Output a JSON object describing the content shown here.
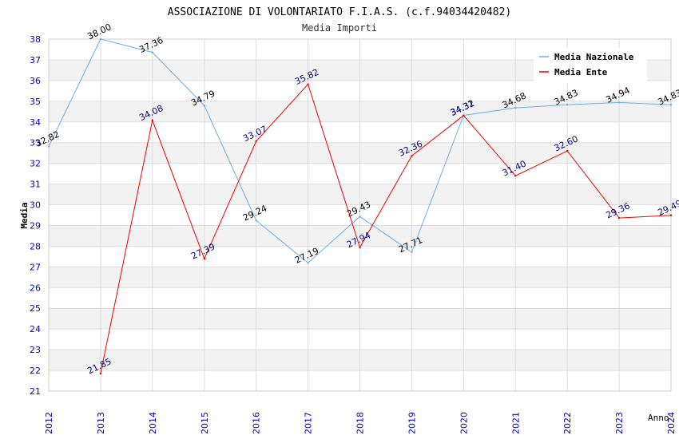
{
  "chart_data": {
    "type": "line",
    "title": "ASSOCIAZIONE DI VOLONTARIATO F.I.A.S. (c.f.94034420482)",
    "subtitle": "Media Importi",
    "xlabel": "Anno",
    "ylabel": "Media",
    "x": [
      "2012",
      "2013",
      "2014",
      "2015",
      "2016",
      "2017",
      "2018",
      "2019",
      "2020",
      "2021",
      "2022",
      "2023",
      "2024"
    ],
    "ylim": [
      21,
      38
    ],
    "yticks": [
      "21",
      "22",
      "23",
      "24",
      "25",
      "26",
      "27",
      "28",
      "29",
      "30",
      "31",
      "32",
      "33",
      "34",
      "35",
      "36",
      "37",
      "38"
    ],
    "legend_position": "top-right",
    "series": [
      {
        "name": "Media Nazionale",
        "color": "#6aaee6",
        "label_color": "#000000",
        "values": [
          32.82,
          38.0,
          37.36,
          34.79,
          29.24,
          27.19,
          29.43,
          27.71,
          34.32,
          34.68,
          34.83,
          34.94,
          34.83
        ],
        "labels": [
          "32.82",
          "38.00",
          "37.36",
          "34.79",
          "29.24",
          "27.19",
          "29.43",
          "27.71",
          "34.32",
          "34.68",
          "34.83",
          "34.94",
          "34.83"
        ]
      },
      {
        "name": "Media Ente",
        "color": "#ee0000",
        "label_color": "#000080",
        "values": [
          null,
          21.85,
          34.08,
          27.39,
          33.07,
          35.82,
          27.94,
          32.36,
          34.31,
          31.4,
          32.6,
          29.36,
          29.49
        ],
        "labels": [
          null,
          "21.85",
          "34.08",
          "27.39",
          "33.07",
          "35.82",
          "27.94",
          "32.36",
          "34.31",
          "31.40",
          "32.60",
          "29.36",
          "29.49"
        ]
      }
    ]
  }
}
